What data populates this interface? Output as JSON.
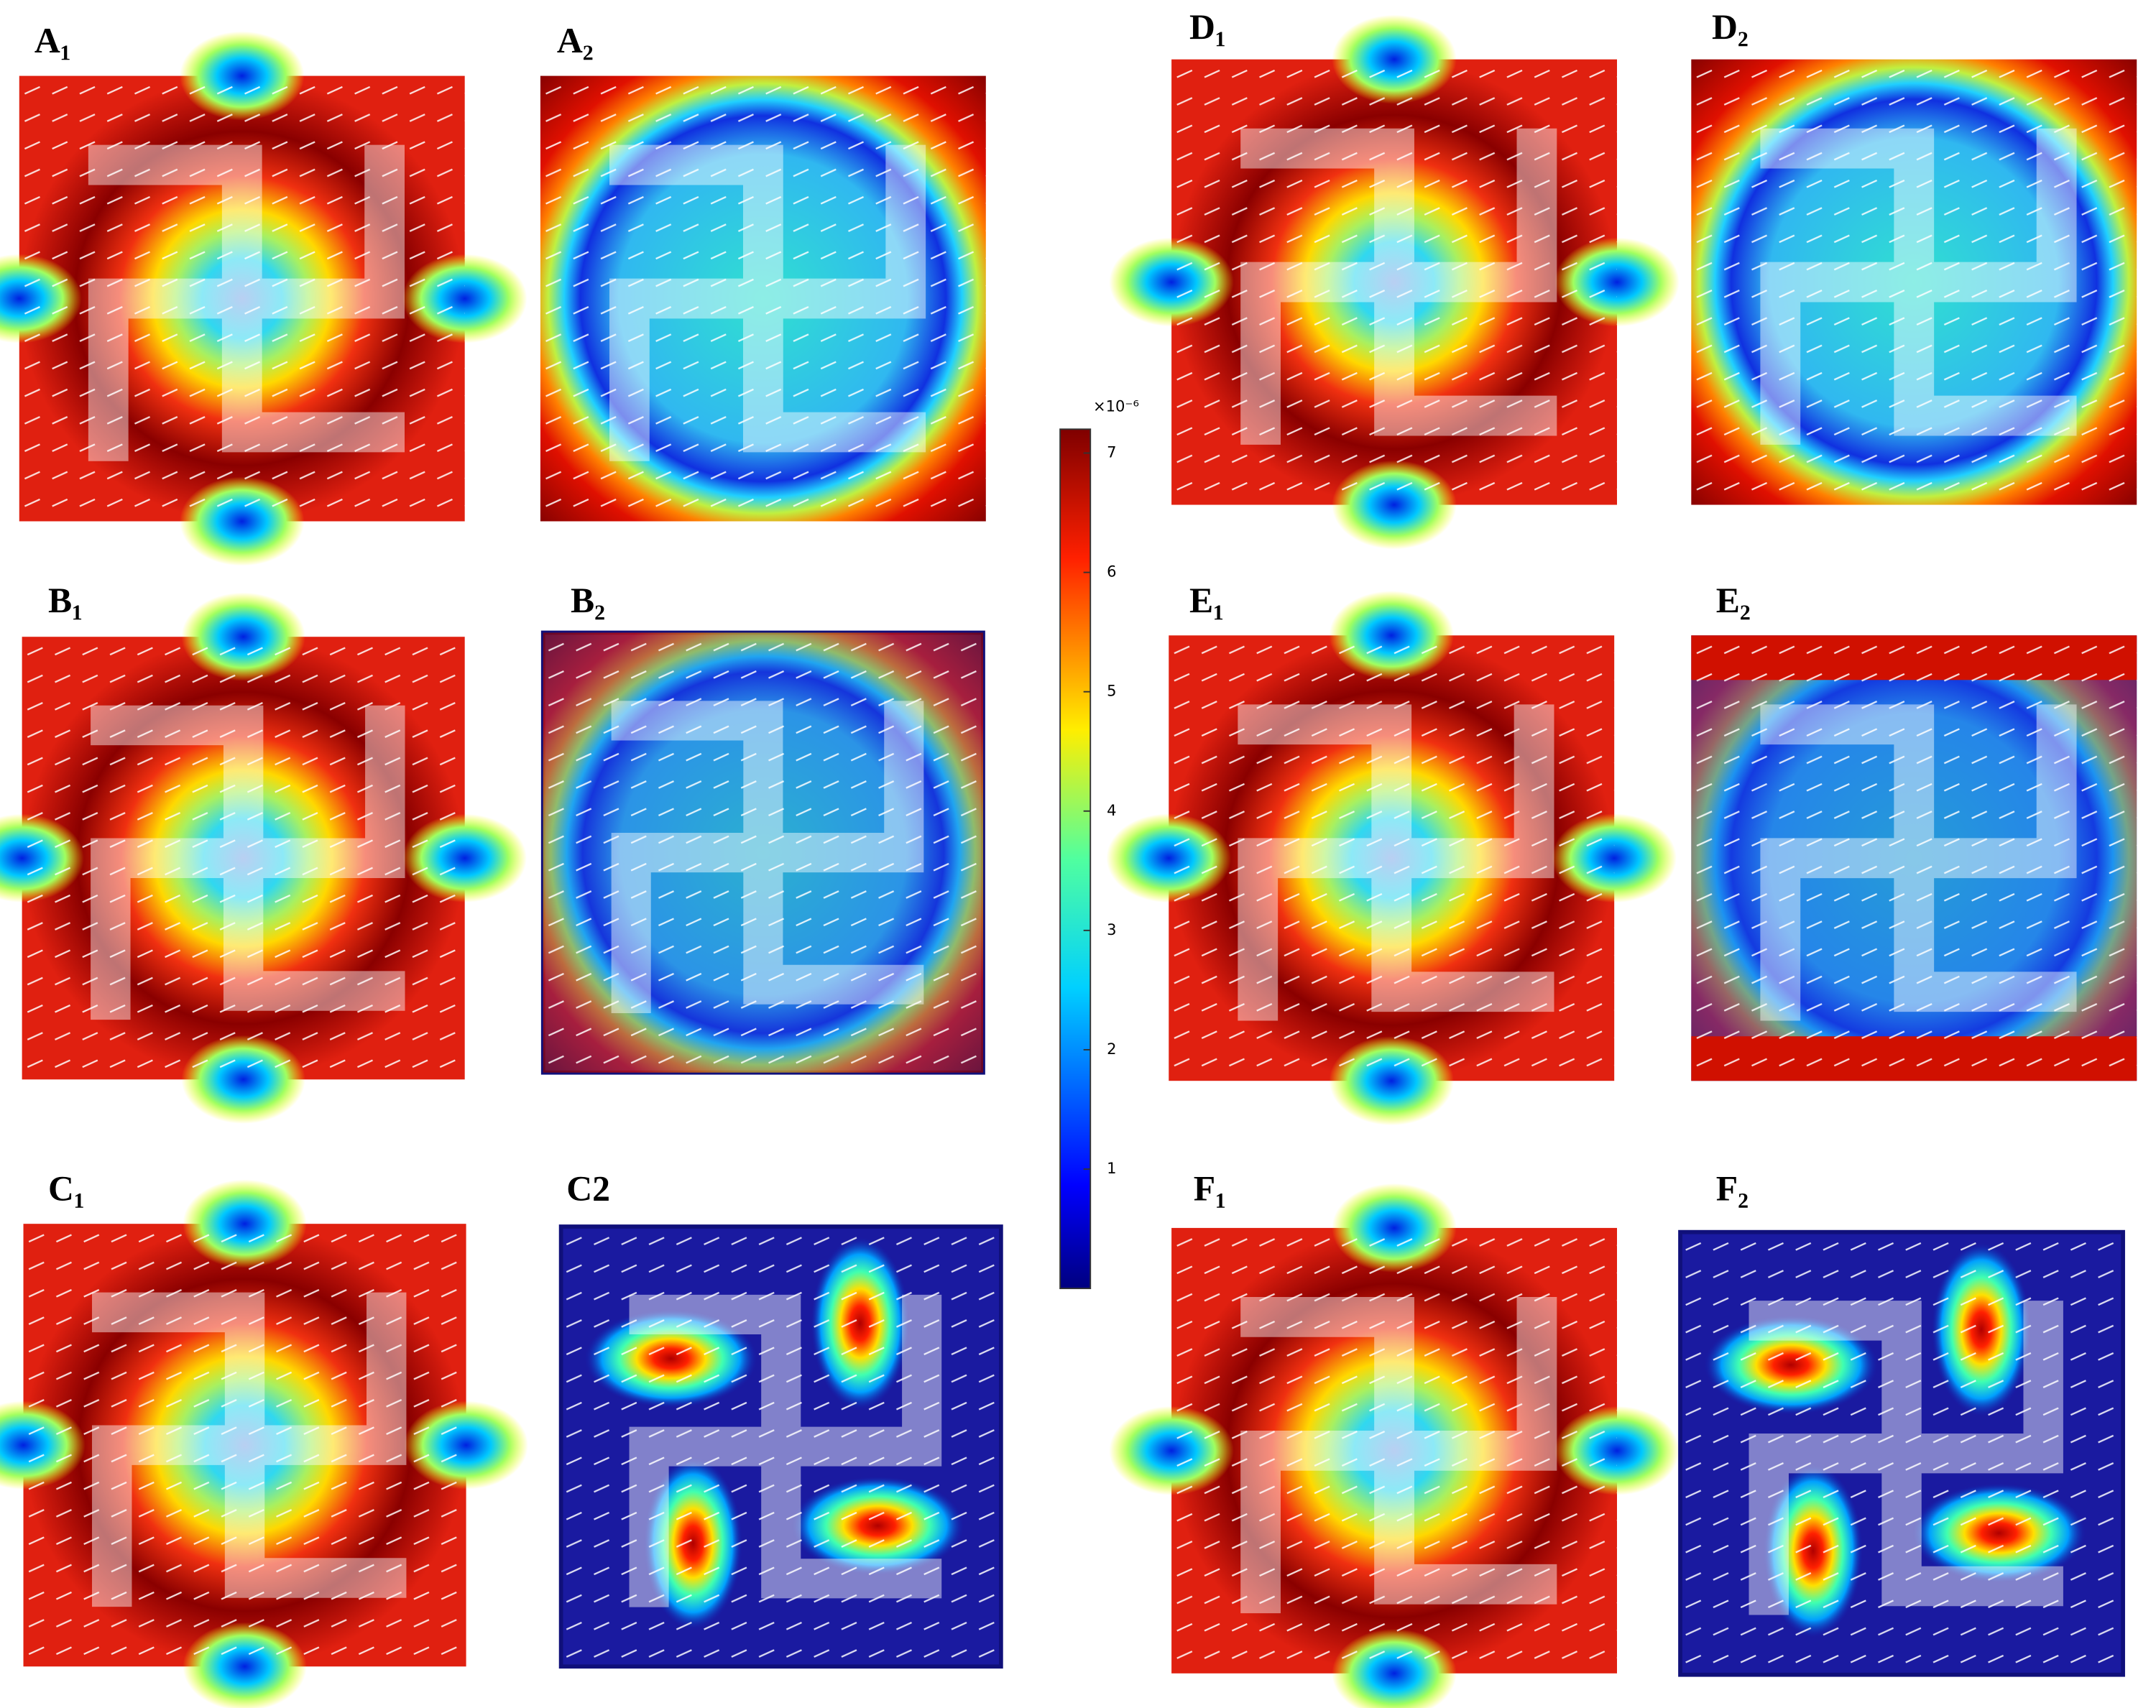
{
  "panels": [
    {
      "label": "A₁"
    },
    {
      "label": "A₂"
    },
    {
      "label": "B₁"
    },
    {
      "label": "B₂"
    },
    {
      "label": "C₁"
    },
    {
      "label": "C2"
    },
    {
      "label": "D₁"
    },
    {
      "label": "D₂"
    },
    {
      "label": "E₁"
    },
    {
      "label": "E₂"
    },
    {
      "label": "F₁"
    },
    {
      "label": "F₂"
    }
  ],
  "colorbar": {
    "exponent_label": "×10⁻⁶",
    "lim": [
      0,
      7.2
    ],
    "ticks": [
      1,
      2,
      3,
      4,
      5,
      6,
      7
    ]
  }
}
